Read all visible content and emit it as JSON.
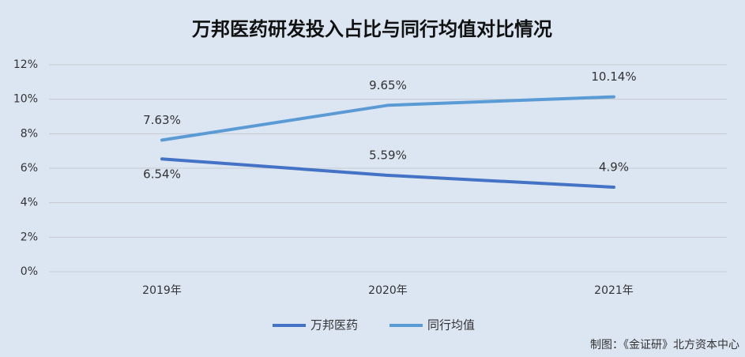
{
  "chart_data": {
    "type": "line",
    "title": "万邦医药研发投入占比与同行均值对比情况",
    "categories": [
      "2019年",
      "2020年",
      "2021年"
    ],
    "series": [
      {
        "name": "万邦医药",
        "color": "#4472c4",
        "values": [
          6.54,
          5.59,
          4.9
        ],
        "value_labels": [
          "6.54%",
          "5.59%",
          "4.9%"
        ]
      },
      {
        "name": "同行均值",
        "color": "#5b9bd5",
        "values": [
          7.63,
          9.65,
          10.14
        ],
        "value_labels": [
          "7.63%",
          "9.65%",
          "10.14%"
        ]
      }
    ],
    "ylim": [
      0,
      12
    ],
    "yticks": [
      {
        "value": 0,
        "label": "0%"
      },
      {
        "value": 2,
        "label": "2%"
      },
      {
        "value": 4,
        "label": "4%"
      },
      {
        "value": 6,
        "label": "6%"
      },
      {
        "value": 8,
        "label": "8%"
      },
      {
        "value": 10,
        "label": "10%"
      },
      {
        "value": 12,
        "label": "12%"
      }
    ],
    "grid": true,
    "legend": "bottom",
    "source": "制图：《金证研》北方资本中心"
  }
}
